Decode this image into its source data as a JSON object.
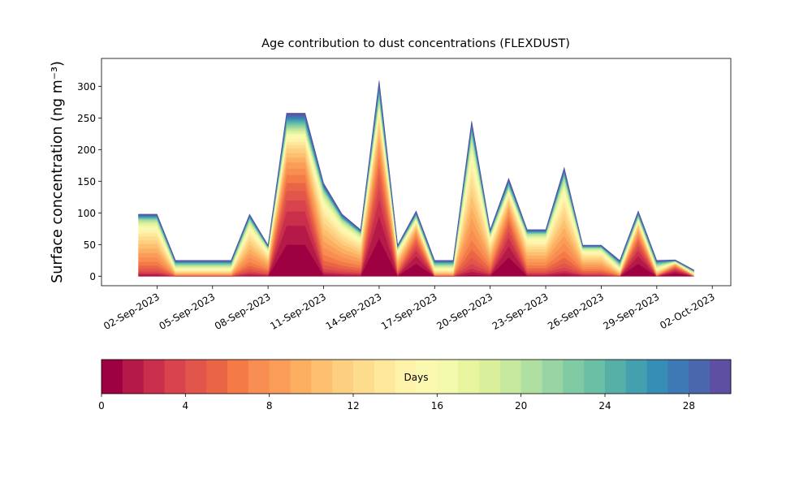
{
  "chart_data": {
    "type": "stackedarea",
    "title": "Age contribution to dust concentrations (FLEXDUST)",
    "y_label": "Surface concentration (ng m⁻³)",
    "x": [
      "01-Sep-2023",
      "02-Sep-2023",
      "03-Sep-2023",
      "04-Sep-2023",
      "05-Sep-2023",
      "06-Sep-2023",
      "07-Sep-2023",
      "08-Sep-2023",
      "09-Sep-2023",
      "10-Sep-2023",
      "11-Sep-2023",
      "12-Sep-2023",
      "13-Sep-2023",
      "14-Sep-2023",
      "15-Sep-2023",
      "16-Sep-2023",
      "17-Sep-2023",
      "18-Sep-2023",
      "19-Sep-2023",
      "20-Sep-2023",
      "21-Sep-2023",
      "22-Sep-2023",
      "23-Sep-2023",
      "24-Sep-2023",
      "25-Sep-2023",
      "26-Sep-2023",
      "27-Sep-2023",
      "28-Sep-2023",
      "29-Sep-2023",
      "30-Sep-2023",
      "01-Oct-2023"
    ],
    "xlim": [
      "30-Aug-2023",
      "03-Oct-2023"
    ],
    "xticks": [
      "02-Sep-2023",
      "05-Sep-2023",
      "08-Sep-2023",
      "11-Sep-2023",
      "14-Sep-2023",
      "17-Sep-2023",
      "20-Sep-2023",
      "23-Sep-2023",
      "26-Sep-2023",
      "29-Sep-2023",
      "02-Oct-2023"
    ],
    "ylim": [
      -15,
      344
    ],
    "yticks": [
      0,
      50,
      100,
      150,
      200,
      250,
      300
    ],
    "series": [
      {
        "color": "#9e0142",
        "values": [
          1,
          1,
          0,
          0,
          0,
          0,
          1,
          0.5,
          50,
          50,
          1.5,
          1,
          0.75,
          60,
          0.5,
          20,
          0,
          0,
          2.5,
          0.75,
          30,
          0.75,
          0.75,
          1.75,
          0.5,
          0.5,
          0,
          20,
          0,
          5,
          0
        ]
      },
      {
        "color": "#b41947",
        "values": [
          2,
          2,
          0,
          0,
          0,
          0,
          2,
          1,
          30,
          30,
          3,
          2,
          1.5,
          36,
          1,
          12,
          0,
          0,
          5,
          1.5,
          18,
          1.5,
          1.5,
          3.5,
          1,
          1,
          0,
          12,
          0,
          3,
          0
        ]
      },
      {
        "color": "#c92e4b",
        "values": [
          2,
          2,
          0.25,
          0.25,
          0.25,
          0.25,
          2,
          1,
          22.5,
          22.5,
          3,
          2,
          1.5,
          27,
          1,
          9,
          0.25,
          0.25,
          5,
          1.5,
          13.5,
          1.5,
          1.5,
          3.5,
          1,
          1,
          0.25,
          9,
          0.25,
          2.25,
          0.1
        ]
      },
      {
        "color": "#d8434e",
        "values": [
          3,
          3,
          0.25,
          0.25,
          0.25,
          0.25,
          3,
          1.5,
          17.5,
          17.5,
          4.5,
          3,
          2.25,
          21,
          1.5,
          7,
          0.25,
          0.25,
          7.5,
          2.25,
          10.5,
          2.25,
          2.25,
          5.25,
          1.5,
          1.5,
          0.25,
          7,
          0.25,
          1.75,
          0.1
        ]
      },
      {
        "color": "#e1554a",
        "values": [
          4,
          4,
          0.25,
          0.25,
          0.25,
          0.25,
          4,
          2,
          15,
          15,
          6,
          4,
          3,
          18,
          2,
          6,
          0.25,
          0.25,
          10,
          3,
          9,
          3,
          3,
          7,
          2,
          2,
          0.25,
          6,
          0.25,
          1.5,
          0.1
        ]
      },
      {
        "color": "#ea6546",
        "values": [
          5,
          5,
          0.5,
          0.5,
          0.5,
          0.5,
          5,
          2.5,
          12.5,
          12.5,
          7.5,
          5,
          3.75,
          15,
          2.5,
          5,
          0.5,
          0.5,
          12.5,
          3.75,
          7.5,
          3.75,
          3.75,
          8.75,
          2.5,
          2.5,
          0.5,
          5,
          0.5,
          1.25,
          0.2
        ]
      },
      {
        "color": "#f47a47",
        "values": [
          6,
          6,
          0.5,
          0.5,
          0.5,
          0.5,
          6,
          3,
          12.5,
          12.5,
          9,
          6,
          4.5,
          15,
          3,
          5,
          0.5,
          0.5,
          15,
          4.5,
          7.5,
          4.5,
          4.5,
          10.5,
          3,
          3,
          0.5,
          5,
          0.5,
          1.25,
          0.2
        ]
      },
      {
        "color": "#f88e52",
        "values": [
          7,
          7,
          0.75,
          0.75,
          0.75,
          0.75,
          7,
          3.5,
          10,
          10,
          10.5,
          7,
          5.25,
          12,
          3.5,
          4,
          0.75,
          0.75,
          17.5,
          5.25,
          6,
          5.25,
          5.25,
          12.25,
          3.5,
          3.5,
          0.75,
          4,
          0.75,
          1,
          0.3
        ]
      },
      {
        "color": "#fa9d59",
        "values": [
          7,
          7,
          0.75,
          0.75,
          0.75,
          0.75,
          7,
          3.5,
          10,
          10,
          10.5,
          7,
          5.25,
          12,
          3.5,
          4,
          0.75,
          0.75,
          17.5,
          5.25,
          6,
          5.25,
          5.25,
          12.25,
          3.5,
          3.5,
          0.75,
          4,
          0.75,
          1,
          0.3
        ]
      },
      {
        "color": "#fcae61",
        "values": [
          7,
          7,
          1,
          1,
          1,
          1,
          7,
          3.5,
          7.5,
          7.5,
          10.5,
          7,
          5.25,
          9,
          3.5,
          3,
          1,
          1,
          17.5,
          5.25,
          4.5,
          5.25,
          5.25,
          12.25,
          3.5,
          3.5,
          1,
          3,
          1,
          0.75,
          0.4
        ]
      },
      {
        "color": "#fdc070",
        "values": [
          7,
          7,
          1,
          1,
          1,
          1,
          7,
          3.5,
          7.5,
          7.5,
          10.5,
          7,
          5.25,
          9,
          3.5,
          3,
          1,
          1,
          17.5,
          5.25,
          4.5,
          5.25,
          5.25,
          12.25,
          3.5,
          3.5,
          1,
          3,
          1,
          0.75,
          0.4
        ]
      },
      {
        "color": "#fdcf80",
        "values": [
          6,
          6,
          1.25,
          1.25,
          1.25,
          1.25,
          6,
          3,
          7.5,
          7.5,
          9,
          6,
          4.5,
          9,
          3,
          3,
          1.25,
          1.25,
          15,
          4.5,
          4.5,
          4.5,
          4.5,
          10.5,
          3,
          3,
          1.25,
          3,
          1.25,
          0.75,
          0.5
        ]
      },
      {
        "color": "#fedc8e",
        "values": [
          6,
          6,
          1.25,
          1.25,
          1.25,
          1.25,
          6,
          3,
          5,
          5,
          9,
          6,
          4.5,
          6,
          3,
          2,
          1.25,
          1.25,
          15,
          4.5,
          3,
          4.5,
          4.5,
          10.5,
          3,
          3,
          1.25,
          2,
          1.25,
          0.5,
          0.5
        ]
      },
      {
        "color": "#fee89b",
        "values": [
          5,
          5,
          1.25,
          1.25,
          1.25,
          1.25,
          5,
          2.5,
          5,
          5,
          7.5,
          5,
          3.75,
          6,
          2.5,
          2,
          1.25,
          1.25,
          12.5,
          3.75,
          3,
          3.75,
          3.75,
          8.75,
          2.5,
          2.5,
          1.25,
          2,
          1.25,
          0.5,
          0.5
        ]
      },
      {
        "color": "#fff3ac",
        "values": [
          5,
          5,
          1.25,
          1.25,
          1.25,
          1.25,
          5,
          2.5,
          5,
          5,
          7.5,
          5,
          3.75,
          6,
          2.5,
          2,
          1.25,
          1.25,
          12.5,
          3.75,
          3,
          3.75,
          3.75,
          8.75,
          2.5,
          2.5,
          1.25,
          2,
          1.25,
          0.5,
          0.5
        ]
      },
      {
        "color": "#fbf8b0",
        "values": [
          4,
          4,
          1.25,
          1.25,
          1.25,
          1.25,
          4,
          2,
          5,
          5,
          6,
          4,
          3,
          6,
          2,
          2,
          1.25,
          1.25,
          10,
          3,
          3,
          3,
          3,
          7,
          2,
          2,
          1.25,
          2,
          1.25,
          0.5,
          0.5
        ]
      },
      {
        "color": "#f3faad",
        "values": [
          3,
          3,
          1.25,
          1.25,
          1.25,
          1.25,
          3,
          1.5,
          2.5,
          2.5,
          4.5,
          3,
          2.25,
          3,
          1.5,
          1,
          1.25,
          1.25,
          7.5,
          2.25,
          1.5,
          2.25,
          2.25,
          5.25,
          1.5,
          1.5,
          1.25,
          1,
          1.25,
          0.25,
          0.5
        ]
      },
      {
        "color": "#e8f59e",
        "values": [
          3,
          3,
          1.25,
          1.25,
          1.25,
          1.25,
          3,
          1.5,
          2.5,
          2.5,
          4.5,
          3,
          2.25,
          3,
          1.5,
          1,
          1.25,
          1.25,
          7.5,
          2.25,
          1.5,
          2.25,
          2.25,
          5.25,
          1.5,
          1.5,
          1.25,
          1,
          1.25,
          0.25,
          0.5
        ]
      },
      {
        "color": "#d9ef9b",
        "values": [
          2,
          2,
          1.25,
          1.25,
          1.25,
          1.25,
          2,
          1,
          2.5,
          2.5,
          3,
          2,
          1.5,
          3,
          1,
          1,
          1.25,
          1.25,
          5,
          1.5,
          1.5,
          1.5,
          1.5,
          3.5,
          1,
          1,
          1.25,
          1,
          1.25,
          0.25,
          0.5
        ]
      },
      {
        "color": "#c5e79e",
        "values": [
          2,
          2,
          1.25,
          1.25,
          1.25,
          1.25,
          2,
          1,
          2.5,
          2.5,
          3,
          2,
          1.5,
          3,
          1,
          1,
          1.25,
          1.25,
          5,
          1.5,
          1.5,
          1.5,
          1.5,
          3.5,
          1,
          1,
          1.25,
          1,
          1.25,
          0.25,
          0.5
        ]
      },
      {
        "color": "#b0dfa2",
        "values": [
          2,
          2,
          1,
          1,
          1,
          1,
          2,
          1,
          2.5,
          2.5,
          3,
          2,
          1.5,
          3,
          1,
          1,
          1,
          1,
          5,
          1.5,
          1.5,
          1.5,
          1.5,
          3.5,
          1,
          1,
          1,
          1,
          1,
          0.25,
          0.4
        ]
      },
      {
        "color": "#99d5a4",
        "values": [
          1,
          1,
          1,
          1,
          1,
          1,
          1,
          0.5,
          2.5,
          2.5,
          1.5,
          1,
          0.75,
          3,
          0.5,
          1,
          1,
          1,
          2.5,
          0.75,
          1.5,
          0.75,
          0.75,
          1.75,
          0.5,
          0.5,
          1,
          1,
          1,
          0.25,
          0.4
        ]
      },
      {
        "color": "#80cba4",
        "values": [
          1,
          1,
          1,
          1,
          1,
          1,
          1,
          0.5,
          2.5,
          2.5,
          1.5,
          1,
          0.75,
          3,
          0.5,
          1,
          1,
          1,
          2.5,
          0.75,
          1.5,
          0.75,
          0.75,
          1.75,
          0.5,
          0.5,
          1,
          1,
          1,
          0.25,
          0.4
        ]
      },
      {
        "color": "#6abfa5",
        "values": [
          1,
          1,
          1,
          1,
          1,
          1,
          1,
          0.5,
          2.5,
          2.5,
          1.5,
          1,
          0.75,
          3,
          0.5,
          1,
          1,
          1,
          2.5,
          0.75,
          1.5,
          0.75,
          0.75,
          1.75,
          0.5,
          0.5,
          1,
          1,
          1,
          0.25,
          0.4
        ]
      },
      {
        "color": "#56b0a8",
        "values": [
          1,
          1,
          0.75,
          0.75,
          0.75,
          0.75,
          1,
          0.5,
          2.5,
          2.5,
          1.5,
          1,
          0.75,
          3,
          0.5,
          1,
          0.75,
          0.75,
          2.5,
          0.75,
          1.5,
          0.75,
          0.75,
          1.75,
          0.5,
          0.5,
          0.75,
          1,
          0.75,
          0.25,
          0.3
        ]
      },
      {
        "color": "#449fae",
        "values": [
          1,
          1,
          0.75,
          0.75,
          0.75,
          0.75,
          1,
          0.5,
          2.5,
          2.5,
          1.5,
          1,
          0.75,
          3,
          0.5,
          1,
          0.75,
          0.75,
          2.5,
          0.75,
          1.5,
          0.75,
          0.75,
          1.75,
          0.5,
          0.5,
          0.75,
          1,
          0.75,
          0.25,
          0.3
        ]
      },
      {
        "color": "#368db5",
        "values": [
          1,
          1,
          0.75,
          0.75,
          0.75,
          0.75,
          1,
          0.5,
          2.5,
          2.5,
          1.5,
          1,
          0.75,
          3,
          0.5,
          1,
          0.75,
          0.75,
          2.5,
          0.75,
          1.5,
          0.75,
          0.75,
          1.75,
          0.5,
          0.5,
          0.75,
          1,
          0.75,
          0.25,
          0.3
        ]
      },
      {
        "color": "#3e79b5",
        "values": [
          1,
          1,
          0.75,
          0.75,
          0.75,
          0.75,
          1,
          0.5,
          2.5,
          2.5,
          1.5,
          1,
          0.75,
          3,
          0.5,
          1,
          0.75,
          0.75,
          2.5,
          0.75,
          1.5,
          0.75,
          0.75,
          1.75,
          0.5,
          0.5,
          0.75,
          1,
          0.75,
          0.25,
          0.3
        ]
      },
      {
        "color": "#4a66ad",
        "values": [
          1,
          1,
          0.75,
          0.75,
          0.75,
          0.75,
          1,
          0.5,
          2.5,
          2.5,
          1.5,
          1,
          0.75,
          3,
          0.5,
          1,
          0.75,
          0.75,
          2.5,
          0.75,
          1.5,
          0.75,
          0.75,
          1.75,
          0.5,
          0.5,
          0.75,
          1,
          0.75,
          0.25,
          0.3
        ]
      },
      {
        "color": "#5e4fa2",
        "values": [
          1,
          1,
          0.75,
          0.75,
          0.75,
          0.75,
          1,
          0.5,
          2.5,
          2.5,
          1.5,
          1,
          0.75,
          3,
          0.5,
          1,
          0.75,
          0.75,
          2.5,
          0.75,
          1.5,
          0.75,
          0.75,
          1.75,
          0.5,
          0.5,
          0.75,
          1,
          0.75,
          0.25,
          0.3
        ]
      }
    ],
    "colorbar": {
      "label": "Days",
      "lim": [
        0,
        30
      ],
      "ticks": [
        0,
        4,
        8,
        12,
        16,
        20,
        24,
        28
      ]
    }
  }
}
